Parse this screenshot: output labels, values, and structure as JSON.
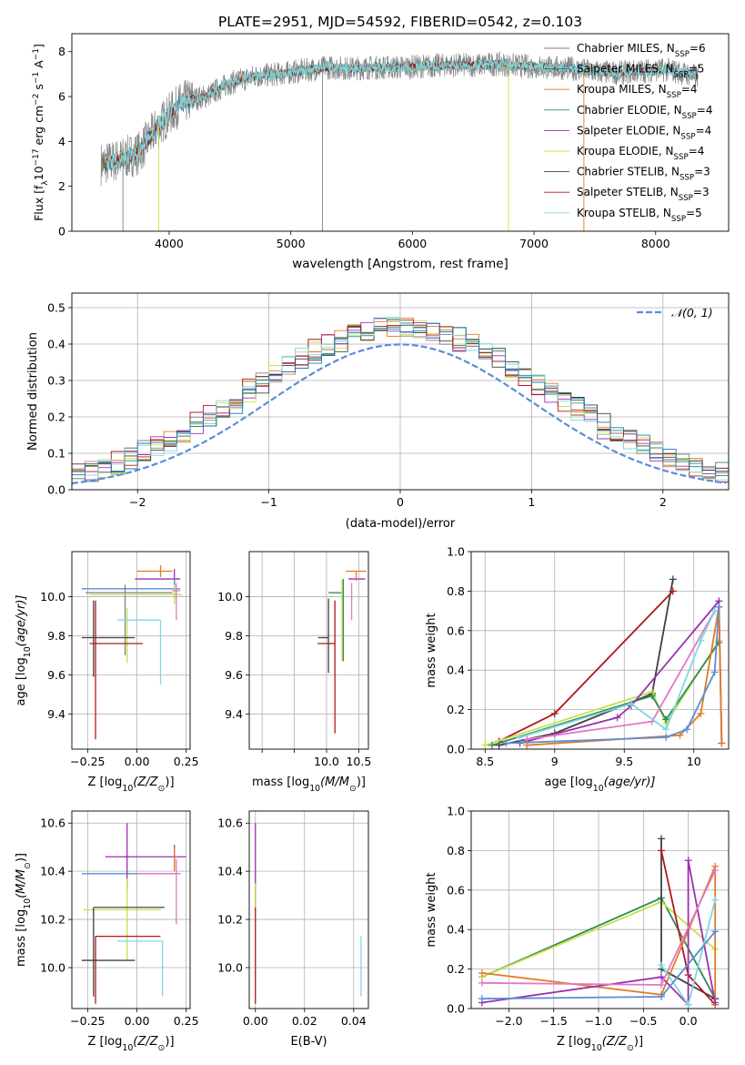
{
  "figure": {
    "title": "PLATE=2951, MJD=54592, FIBERID=0542, z=0.103"
  },
  "chart_data": [
    {
      "type": "line",
      "panel": "spectrum",
      "xlabel": "wavelength [Angstrom, rest frame]",
      "ylabel_parts": [
        "Flux [f",
        "λ",
        "10",
        "−17",
        " erg cm",
        "−2",
        " s",
        "−1",
        " A",
        "−1",
        "]"
      ],
      "xlim": [
        3200,
        8600
      ],
      "ylim": [
        0,
        8.8
      ],
      "xticks": [
        4000,
        5000,
        6000,
        7000,
        8000
      ],
      "yticks": [
        0,
        2,
        4,
        6,
        8
      ],
      "grid": false,
      "legend_position": "top-right",
      "spectrum_control_points": {
        "x": [
          3450,
          3600,
          3750,
          3900,
          4000,
          4100,
          4200,
          4300,
          4400,
          4500,
          4700,
          4900,
          5100,
          5300,
          5500,
          5700,
          5900,
          6100,
          6300,
          6500,
          6700,
          6900,
          7100,
          7300,
          7500,
          7700,
          7900,
          8100,
          8350
        ],
        "y": [
          3.0,
          3.2,
          3.5,
          4.6,
          5.2,
          5.7,
          5.9,
          6.0,
          6.3,
          6.6,
          6.9,
          7.0,
          7.15,
          7.3,
          7.25,
          7.3,
          7.3,
          7.35,
          7.4,
          7.4,
          7.45,
          7.35,
          7.3,
          7.25,
          7.1,
          7.05,
          7.15,
          7.2,
          6.9
        ]
      },
      "series": [
        {
          "name_parts": [
            "Chabrier MILES, N",
            "SSP",
            "=6"
          ],
          "color": "#7f7f7f"
        },
        {
          "name_parts": [
            "Salpeter MILES, N",
            "SSP",
            "=5"
          ],
          "color": "#1f77b4"
        },
        {
          "name_parts": [
            "Kroupa MILES, N",
            "SSP",
            "=4"
          ],
          "color": "#e07b26"
        },
        {
          "name_parts": [
            "Chabrier ELODIE, N",
            "SSP",
            "=4"
          ],
          "color": "#2e8b57"
        },
        {
          "name_parts": [
            "Salpeter ELODIE, N",
            "SSP",
            "=4"
          ],
          "color": "#9b30b0"
        },
        {
          "name_parts": [
            "Kroupa ELODIE, N",
            "SSP",
            "=4"
          ],
          "color": "#c7e04a"
        },
        {
          "name_parts": [
            "Chabrier STELIB, N",
            "SSP",
            "=3"
          ],
          "color": "#404040"
        },
        {
          "name_parts": [
            "Salpeter STELIB, N",
            "SSP",
            "=3"
          ],
          "color": "#b01818"
        },
        {
          "name_parts": [
            "Kroupa STELIB, N",
            "SSP",
            "=5"
          ],
          "color": "#7fd8e0"
        }
      ]
    },
    {
      "type": "line",
      "panel": "residual-histogram",
      "xlabel": "(data-model)/error",
      "ylabel": "Normed distribution",
      "xlim": [
        -2.5,
        2.5
      ],
      "ylim": [
        0,
        0.54
      ],
      "xticks": [
        -2,
        -1,
        0,
        1,
        2
      ],
      "yticks": [
        0.0,
        0.1,
        0.2,
        0.3,
        0.4,
        0.5
      ],
      "grid": true,
      "legend_position": "top-right",
      "reference": {
        "name": "𝒩(0, 1)",
        "mean": 0,
        "sigma": 1,
        "color": "#5b8dd9"
      },
      "bin_width": 0.1,
      "series_colors": [
        "#7f7f7f",
        "#e07b26",
        "#2e8b57",
        "#9b30b0",
        "#c7e04a",
        "#404040",
        "#b01818",
        "#7fd8e0",
        "#1f77b4"
      ]
    },
    {
      "type": "scatter",
      "panel": "age-vs-Z",
      "xlabel_parts": [
        "Z [log",
        "10",
        "(Z/Z",
        "⊙",
        ")]"
      ],
      "ylabel_parts": [
        "age  [log",
        "10",
        "(age/yr)]"
      ],
      "xlim": [
        -0.33,
        0.27
      ],
      "ylim": [
        9.22,
        10.23
      ],
      "xticks": [
        -0.25,
        0.0,
        0.25
      ],
      "xtick_labels": [
        "−0.25",
        "0.00",
        "0.25"
      ],
      "yticks": [
        9.4,
        9.6,
        9.8,
        10.0
      ],
      "grid": true,
      "points": [
        {
          "x": 0.12,
          "xerr": [
            0.12,
            0.06
          ],
          "y": 10.13,
          "yerr": [
            0.03,
            0.03
          ],
          "color": "#e07b26"
        },
        {
          "x": 0.19,
          "xerr": [
            0.2,
            0.03
          ],
          "y": 10.09,
          "yerr": [
            0.05,
            0.05
          ],
          "color": "#9b30b0"
        },
        {
          "x": 0.19,
          "xerr": [
            0.47,
            0.03
          ],
          "y": 10.04,
          "yerr": [
            0.05,
            0.05
          ],
          "color": "#5b8dd9"
        },
        {
          "x": -0.06,
          "xerr": [
            0.2,
            0.24
          ],
          "y": 10.02,
          "yerr": [
            0.32,
            0.04
          ],
          "color": "#7f7f7f"
        },
        {
          "x": 0.19,
          "xerr": [
            0.43,
            0.04
          ],
          "y": 10.01,
          "yerr": [
            0.05,
            0.05
          ],
          "color": "#c7e04a"
        },
        {
          "x": 0.2,
          "xerr": [
            0.02,
            0.02
          ],
          "y": 10.03,
          "yerr": [
            0.15,
            0.04
          ],
          "color": "#e377c2"
        },
        {
          "x": -0.05,
          "xerr": [
            0.01,
            0.01
          ],
          "y": 9.79,
          "yerr": [
            0.13,
            0.15
          ],
          "color": "#c7e04a"
        },
        {
          "x": 0.12,
          "xerr": [
            0.22,
            0.0
          ],
          "y": 9.88,
          "yerr": [
            0.33,
            0.0
          ],
          "color": "#7fd8e0"
        },
        {
          "x": -0.22,
          "xerr": [
            0.06,
            0.21
          ],
          "y": 9.79,
          "yerr": [
            0.2,
            0.19
          ],
          "color": "#404040"
        },
        {
          "x": -0.21,
          "xerr": [
            0.03,
            0.24
          ],
          "y": 9.76,
          "yerr": [
            0.49,
            0.22
          ],
          "color": "#b01818"
        }
      ]
    },
    {
      "type": "scatter",
      "panel": "age-vs-mass",
      "xlabel_parts": [
        "mass [log",
        "10",
        "(M/M",
        "⊙",
        ")]"
      ],
      "xlim": [
        8.8,
        10.65
      ],
      "ylim": [
        9.22,
        10.23
      ],
      "xticks": [
        9.0,
        9.5,
        10.0,
        10.5
      ],
      "xtick_labels": [
        "",
        "",
        "10.0",
        "10.5"
      ],
      "yticks": [
        9.4,
        9.6,
        9.8,
        10.0
      ],
      "grid": true,
      "points": [
        {
          "x": 10.46,
          "xerr": [
            0.16,
            0.16
          ],
          "y": 10.13,
          "yerr": [
            0.0,
            0.0
          ],
          "color": "#e07b26"
        },
        {
          "x": 10.46,
          "xerr": [
            0.12,
            0.14
          ],
          "y": 10.09,
          "yerr": [
            0.0,
            0.0
          ],
          "color": "#9b30b0"
        },
        {
          "x": 10.46,
          "xerr": [
            0.0,
            0.0
          ],
          "y": 10.13,
          "yerr": [
            0.05,
            0.0
          ],
          "color": "#e07b26"
        },
        {
          "x": 10.39,
          "xerr": [
            0.0,
            0.0
          ],
          "y": 10.03,
          "yerr": [
            0.15,
            0.04
          ],
          "color": "#e377c2"
        },
        {
          "x": 10.24,
          "xerr": [
            0.21,
            0.0
          ],
          "y": 10.02,
          "yerr": [
            0.0,
            0.0
          ],
          "color": "#2e8b57"
        },
        {
          "x": 10.24,
          "xerr": [
            0.0,
            0.0
          ],
          "y": 10.01,
          "yerr": [
            0.34,
            0.08
          ],
          "color": "#c7e04a"
        },
        {
          "x": 10.26,
          "xerr": [
            0.0,
            0.0
          ],
          "y": 10.01,
          "yerr": [
            0.34,
            0.08
          ],
          "color": "#2e8b57"
        },
        {
          "x": 10.03,
          "xerr": [
            0.16,
            0.0
          ],
          "y": 9.79,
          "yerr": [
            0.18,
            0.2
          ],
          "color": "#404040"
        },
        {
          "x": 10.1,
          "xerr": [
            0.0,
            0.0
          ],
          "y": 9.88,
          "yerr": [
            0.0,
            0.0
          ],
          "color": "#7fd8e0"
        },
        {
          "x": 10.13,
          "xerr": [
            0.27,
            0.0
          ],
          "y": 9.76,
          "yerr": [
            0.46,
            0.22
          ],
          "color": "#b01818"
        }
      ]
    },
    {
      "type": "line",
      "panel": "mass-weight-vs-age",
      "xlabel_parts": [
        "age  [log",
        "10",
        "(age/yr)]"
      ],
      "ylabel": "mass weight",
      "xlim": [
        8.4,
        10.25
      ],
      "ylim": [
        0,
        1.0
      ],
      "xticks": [
        8.5,
        9.0,
        9.5,
        10.0
      ],
      "yticks": [
        0.0,
        0.2,
        0.4,
        0.6,
        0.8,
        1.0
      ],
      "grid": true,
      "series": [
        {
          "color": "#404040",
          "x": [
            8.6,
            9.0,
            9.7,
            9.85
          ],
          "y": [
            0.02,
            0.08,
            0.28,
            0.86
          ]
        },
        {
          "color": "#b01818",
          "x": [
            8.6,
            9.0,
            9.85
          ],
          "y": [
            0.04,
            0.18,
            0.8
          ]
        },
        {
          "color": "#c7e04a",
          "x": [
            8.5,
            9.7,
            9.8,
            10.18
          ],
          "y": [
            0.02,
            0.29,
            0.13,
            0.55
          ]
        },
        {
          "color": "#2e8b57",
          "x": [
            8.55,
            9.7,
            9.8,
            10.18
          ],
          "y": [
            0.02,
            0.27,
            0.15,
            0.54
          ]
        },
        {
          "color": "#9b30b0",
          "x": [
            8.75,
            9.45,
            9.55,
            10.18,
            10.2
          ],
          "y": [
            0.03,
            0.16,
            0.22,
            0.75,
            0.03
          ]
        },
        {
          "color": "#e377c2",
          "x": [
            8.8,
            9.7,
            10.15
          ],
          "y": [
            0.05,
            0.14,
            0.7
          ]
        },
        {
          "color": "#7fd8e0",
          "x": [
            8.75,
            9.55,
            9.8,
            10.05,
            10.15
          ],
          "y": [
            0.06,
            0.23,
            0.1,
            0.55,
            0.7
          ]
        },
        {
          "color": "#e07b26",
          "x": [
            8.8,
            9.9,
            10.05,
            10.18,
            10.2
          ],
          "y": [
            0.02,
            0.07,
            0.18,
            0.72,
            0.03
          ]
        },
        {
          "color": "#5b8dd9",
          "x": [
            8.65,
            9.8,
            9.95,
            10.15,
            10.18
          ],
          "y": [
            0.03,
            0.06,
            0.1,
            0.39,
            0.72
          ]
        }
      ]
    },
    {
      "type": "scatter",
      "panel": "mass-vs-Z",
      "xlabel_parts": [
        "Z [log",
        "10",
        "(Z/Z",
        "⊙",
        ")]"
      ],
      "ylabel_parts": [
        "mass [log",
        "10",
        "(M/M",
        "⊙",
        ")]"
      ],
      "xlim": [
        -0.33,
        0.27
      ],
      "ylim": [
        9.83,
        10.65
      ],
      "xticks": [
        -0.25,
        0.0,
        0.25
      ],
      "xtick_labels": [
        "−0.25",
        "0.00",
        "0.25"
      ],
      "yticks": [
        10.0,
        10.2,
        10.4,
        10.6
      ],
      "grid": true,
      "points": [
        {
          "x": 0.19,
          "xerr": [
            0.35,
            0.06
          ],
          "y": 10.46,
          "yerr": [
            0.05,
            0.05
          ],
          "color": "#9b30b0"
        },
        {
          "x": 0.19,
          "xerr": [
            0.0,
            0.0
          ],
          "y": 10.46,
          "yerr": [
            0.06,
            0.04
          ],
          "color": "#e07b26"
        },
        {
          "x": 0.19,
          "xerr": [
            0.47,
            0.03
          ],
          "y": 10.39,
          "yerr": [
            0.0,
            0.0
          ],
          "color": "#5b8dd9"
        },
        {
          "x": 0.2,
          "xerr": [
            0.2,
            0.02
          ],
          "y": 10.39,
          "yerr": [
            0.21,
            0.06
          ],
          "color": "#e377c2"
        },
        {
          "x": -0.05,
          "xerr": [
            0.01,
            0.01
          ],
          "y": 10.46,
          "yerr": [
            0.14,
            0.14
          ],
          "color": "#9b30b0"
        },
        {
          "x": 0.12,
          "xerr": [
            0.39,
            0.0
          ],
          "y": 10.24,
          "yerr": [
            0.0,
            0.0
          ],
          "color": "#c7e04a"
        },
        {
          "x": -0.05,
          "xerr": [
            0.0,
            0.0
          ],
          "y": 10.23,
          "yerr": [
            0.2,
            0.14
          ],
          "color": "#c7e04a"
        },
        {
          "x": -0.22,
          "xerr": [
            0.0,
            0.36
          ],
          "y": 10.25,
          "yerr": [
            0.37,
            0.0
          ],
          "color": "#404040"
        },
        {
          "x": 0.13,
          "xerr": [
            0.23,
            0.0
          ],
          "y": 10.11,
          "yerr": [
            0.23,
            0.0
          ],
          "color": "#7fd8e0"
        },
        {
          "x": -0.21,
          "xerr": [
            0.0,
            0.33
          ],
          "y": 10.13,
          "yerr": [
            0.28,
            0.0
          ],
          "color": "#b01818"
        },
        {
          "x": -0.22,
          "xerr": [
            0.06,
            0.21
          ],
          "y": 10.03,
          "yerr": [
            0.0,
            0.0
          ],
          "color": "#404040"
        }
      ]
    },
    {
      "type": "scatter",
      "panel": "mass-vs-EBV",
      "xlabel": "E(B-V)",
      "xlim": [
        -0.0025,
        0.046
      ],
      "ylim": [
        9.83,
        10.65
      ],
      "xticks": [
        0.0,
        0.02,
        0.04
      ],
      "xtick_labels": [
        "0.00",
        "0.02",
        "0.04"
      ],
      "yticks": [
        10.0,
        10.2,
        10.4,
        10.6
      ],
      "grid": true,
      "points": [
        {
          "x": 0.0,
          "y": 10.45,
          "yerr": [
            0.2,
            0.15
          ],
          "color": "#9b30b0"
        },
        {
          "x": 0.0,
          "y": 10.3,
          "yerr": [
            0.45,
            0.05
          ],
          "color": "#b01818"
        },
        {
          "x": 0.0,
          "y": 10.3,
          "yerr": [
            0.05,
            0.05
          ],
          "color": "#c7e04a"
        },
        {
          "x": 0.043,
          "y": 10.0,
          "yerr": [
            0.12,
            0.13
          ],
          "color": "#7fd8e0"
        }
      ]
    },
    {
      "type": "line",
      "panel": "mass-weight-vs-Z",
      "xlabel_parts": [
        "Z [log",
        "10",
        "(Z/Z",
        "⊙",
        ")]"
      ],
      "ylabel": "mass weight",
      "xlim": [
        -2.42,
        0.45
      ],
      "ylim": [
        0,
        1.0
      ],
      "xticks": [
        -2.0,
        -1.5,
        -1.0,
        -0.5,
        0.0
      ],
      "xtick_labels": [
        "−2.0",
        "−1.5",
        "−1.0",
        "−0.5",
        "0.0"
      ],
      "yticks": [
        0.0,
        0.2,
        0.4,
        0.6,
        0.8,
        1.0
      ],
      "grid": true,
      "series": [
        {
          "color": "#2e8b57",
          "x": [
            -2.3,
            -0.3,
            0.3
          ],
          "y": [
            0.16,
            0.56,
            0.05
          ]
        },
        {
          "color": "#c7e04a",
          "x": [
            -2.3,
            -0.3,
            0.3
          ],
          "y": [
            0.16,
            0.54,
            0.3
          ]
        },
        {
          "color": "#404040",
          "x": [
            -0.3,
            -0.3,
            0.3
          ],
          "y": [
            0.86,
            0.2,
            0.05
          ]
        },
        {
          "color": "#b01818",
          "x": [
            -0.3,
            0.0,
            0.3
          ],
          "y": [
            0.8,
            0.17,
            0.02
          ]
        },
        {
          "color": "#e07b26",
          "x": [
            -2.3,
            -0.3,
            0.3,
            0.3
          ],
          "y": [
            0.18,
            0.07,
            0.72,
            0.02
          ]
        },
        {
          "color": "#9b30b0",
          "x": [
            -2.3,
            -0.3,
            0.0,
            0.0,
            0.3
          ],
          "y": [
            0.03,
            0.16,
            0.02,
            0.75,
            0.03
          ]
        },
        {
          "color": "#e377c2",
          "x": [
            -2.3,
            -0.3,
            0.3
          ],
          "y": [
            0.13,
            0.12,
            0.7
          ]
        },
        {
          "color": "#7fd8e0",
          "x": [
            -0.3,
            0.0,
            0.3
          ],
          "y": [
            0.22,
            0.02,
            0.55
          ]
        },
        {
          "color": "#5b8dd9",
          "x": [
            -2.3,
            -0.3,
            0.3
          ],
          "y": [
            0.05,
            0.06,
            0.39
          ]
        }
      ]
    }
  ]
}
